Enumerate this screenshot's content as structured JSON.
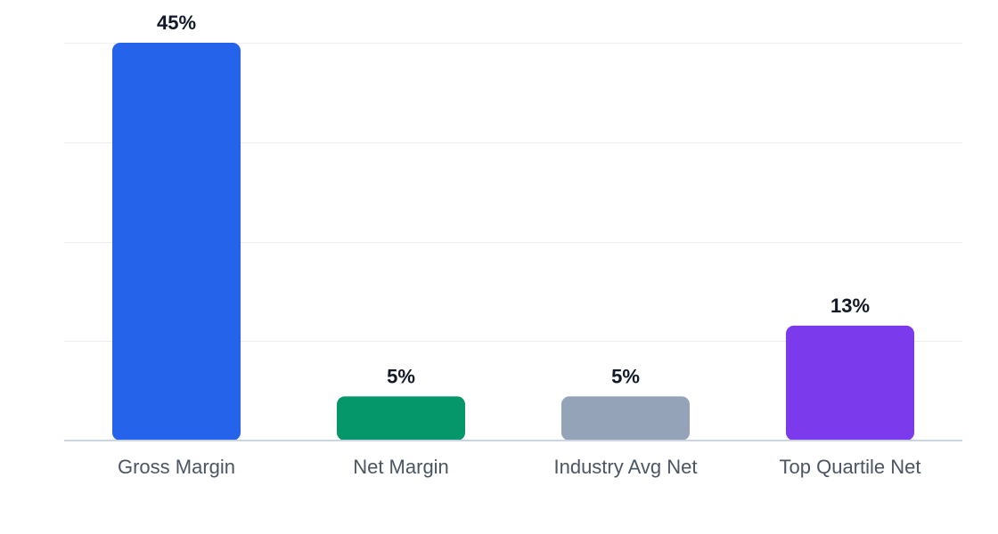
{
  "chart_data": {
    "type": "bar",
    "title": "",
    "xlabel": "",
    "ylabel": "",
    "ylim": [
      0,
      45
    ],
    "grid": true,
    "legend": "none",
    "value_suffix": "%",
    "categories": [
      "Gross Margin",
      "Net Margin",
      "Industry Avg Net",
      "Top Quartile Net"
    ],
    "values": [
      45,
      5,
      5,
      13
    ],
    "value_labels": [
      "45%",
      "5%",
      "5%",
      "13%"
    ],
    "colors": [
      "#2563eb",
      "#059669",
      "#94a3b8",
      "#7c3aed"
    ]
  }
}
